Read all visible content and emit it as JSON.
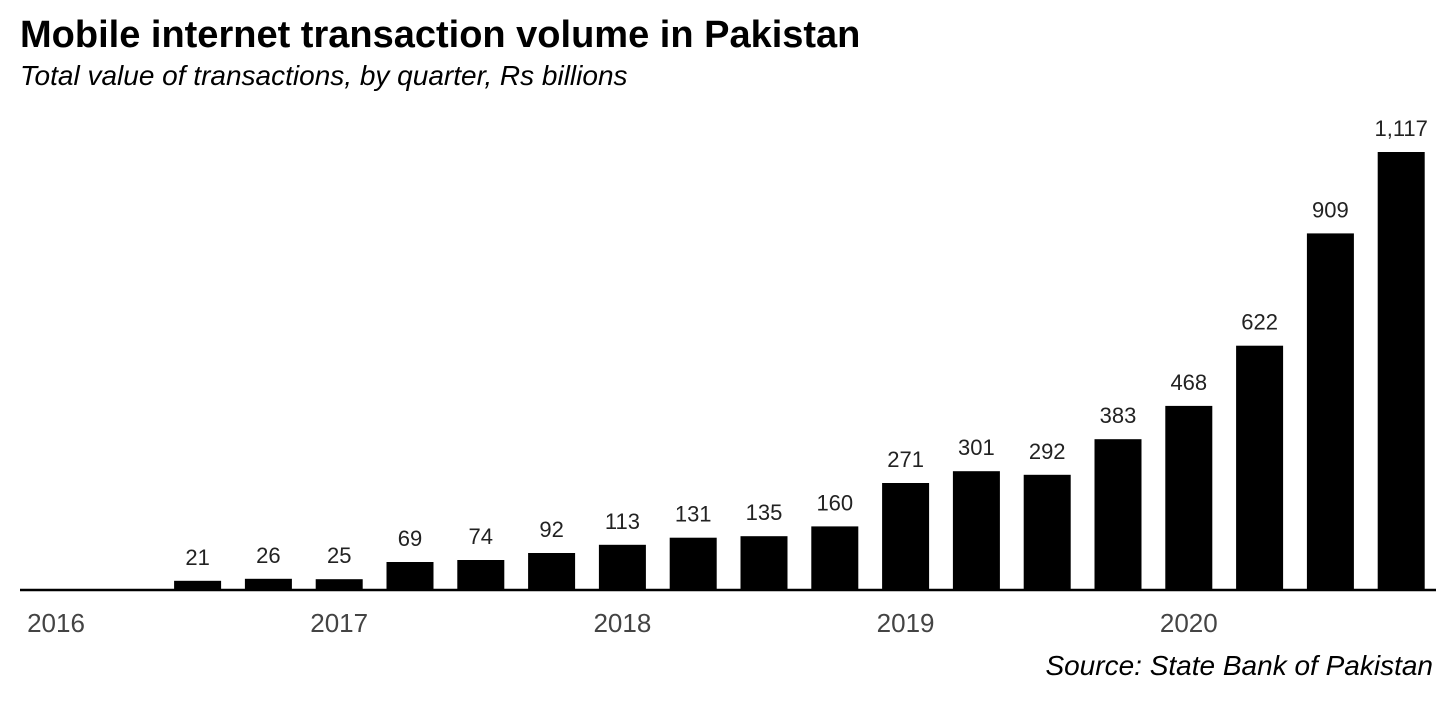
{
  "chart_data": {
    "type": "bar",
    "title": "Mobile internet transaction volume in Pakistan",
    "subtitle": "Total value of transactions, by quarter, Rs billions",
    "source": "Source: State Bank of Pakistan",
    "categories": [
      "2016 Q1",
      "2016 Q2",
      "2016 Q3",
      "2016 Q4",
      "2017 Q1",
      "2017 Q2",
      "2017 Q3",
      "2017 Q4",
      "2018 Q1",
      "2018 Q2",
      "2018 Q3",
      "2018 Q4",
      "2019 Q1",
      "2019 Q2",
      "2019 Q3",
      "2019 Q4",
      "2020 Q1",
      "2020 Q2",
      "2020 Q3",
      "2020 Q4"
    ],
    "values": [
      null,
      null,
      21,
      26,
      25,
      69,
      74,
      92,
      113,
      131,
      135,
      160,
      271,
      301,
      292,
      383,
      468,
      622,
      909,
      1117
    ],
    "value_labels": [
      "",
      "",
      "21",
      "26",
      "25",
      "69",
      "74",
      "92",
      "113",
      "131",
      "135",
      "160",
      "271",
      "301",
      "292",
      "383",
      "468",
      "622",
      "909",
      "1,117"
    ],
    "x_tick_labels": [
      {
        "label": "2016",
        "category_index": 0
      },
      {
        "label": "2017",
        "category_index": 4
      },
      {
        "label": "2018",
        "category_index": 8
      },
      {
        "label": "2019",
        "category_index": 12
      },
      {
        "label": "2020",
        "category_index": 16
      }
    ],
    "ylim": [
      0,
      1117
    ],
    "grid": false,
    "legend": "none",
    "bar_color": "#000000",
    "axis_color": "#000000"
  }
}
